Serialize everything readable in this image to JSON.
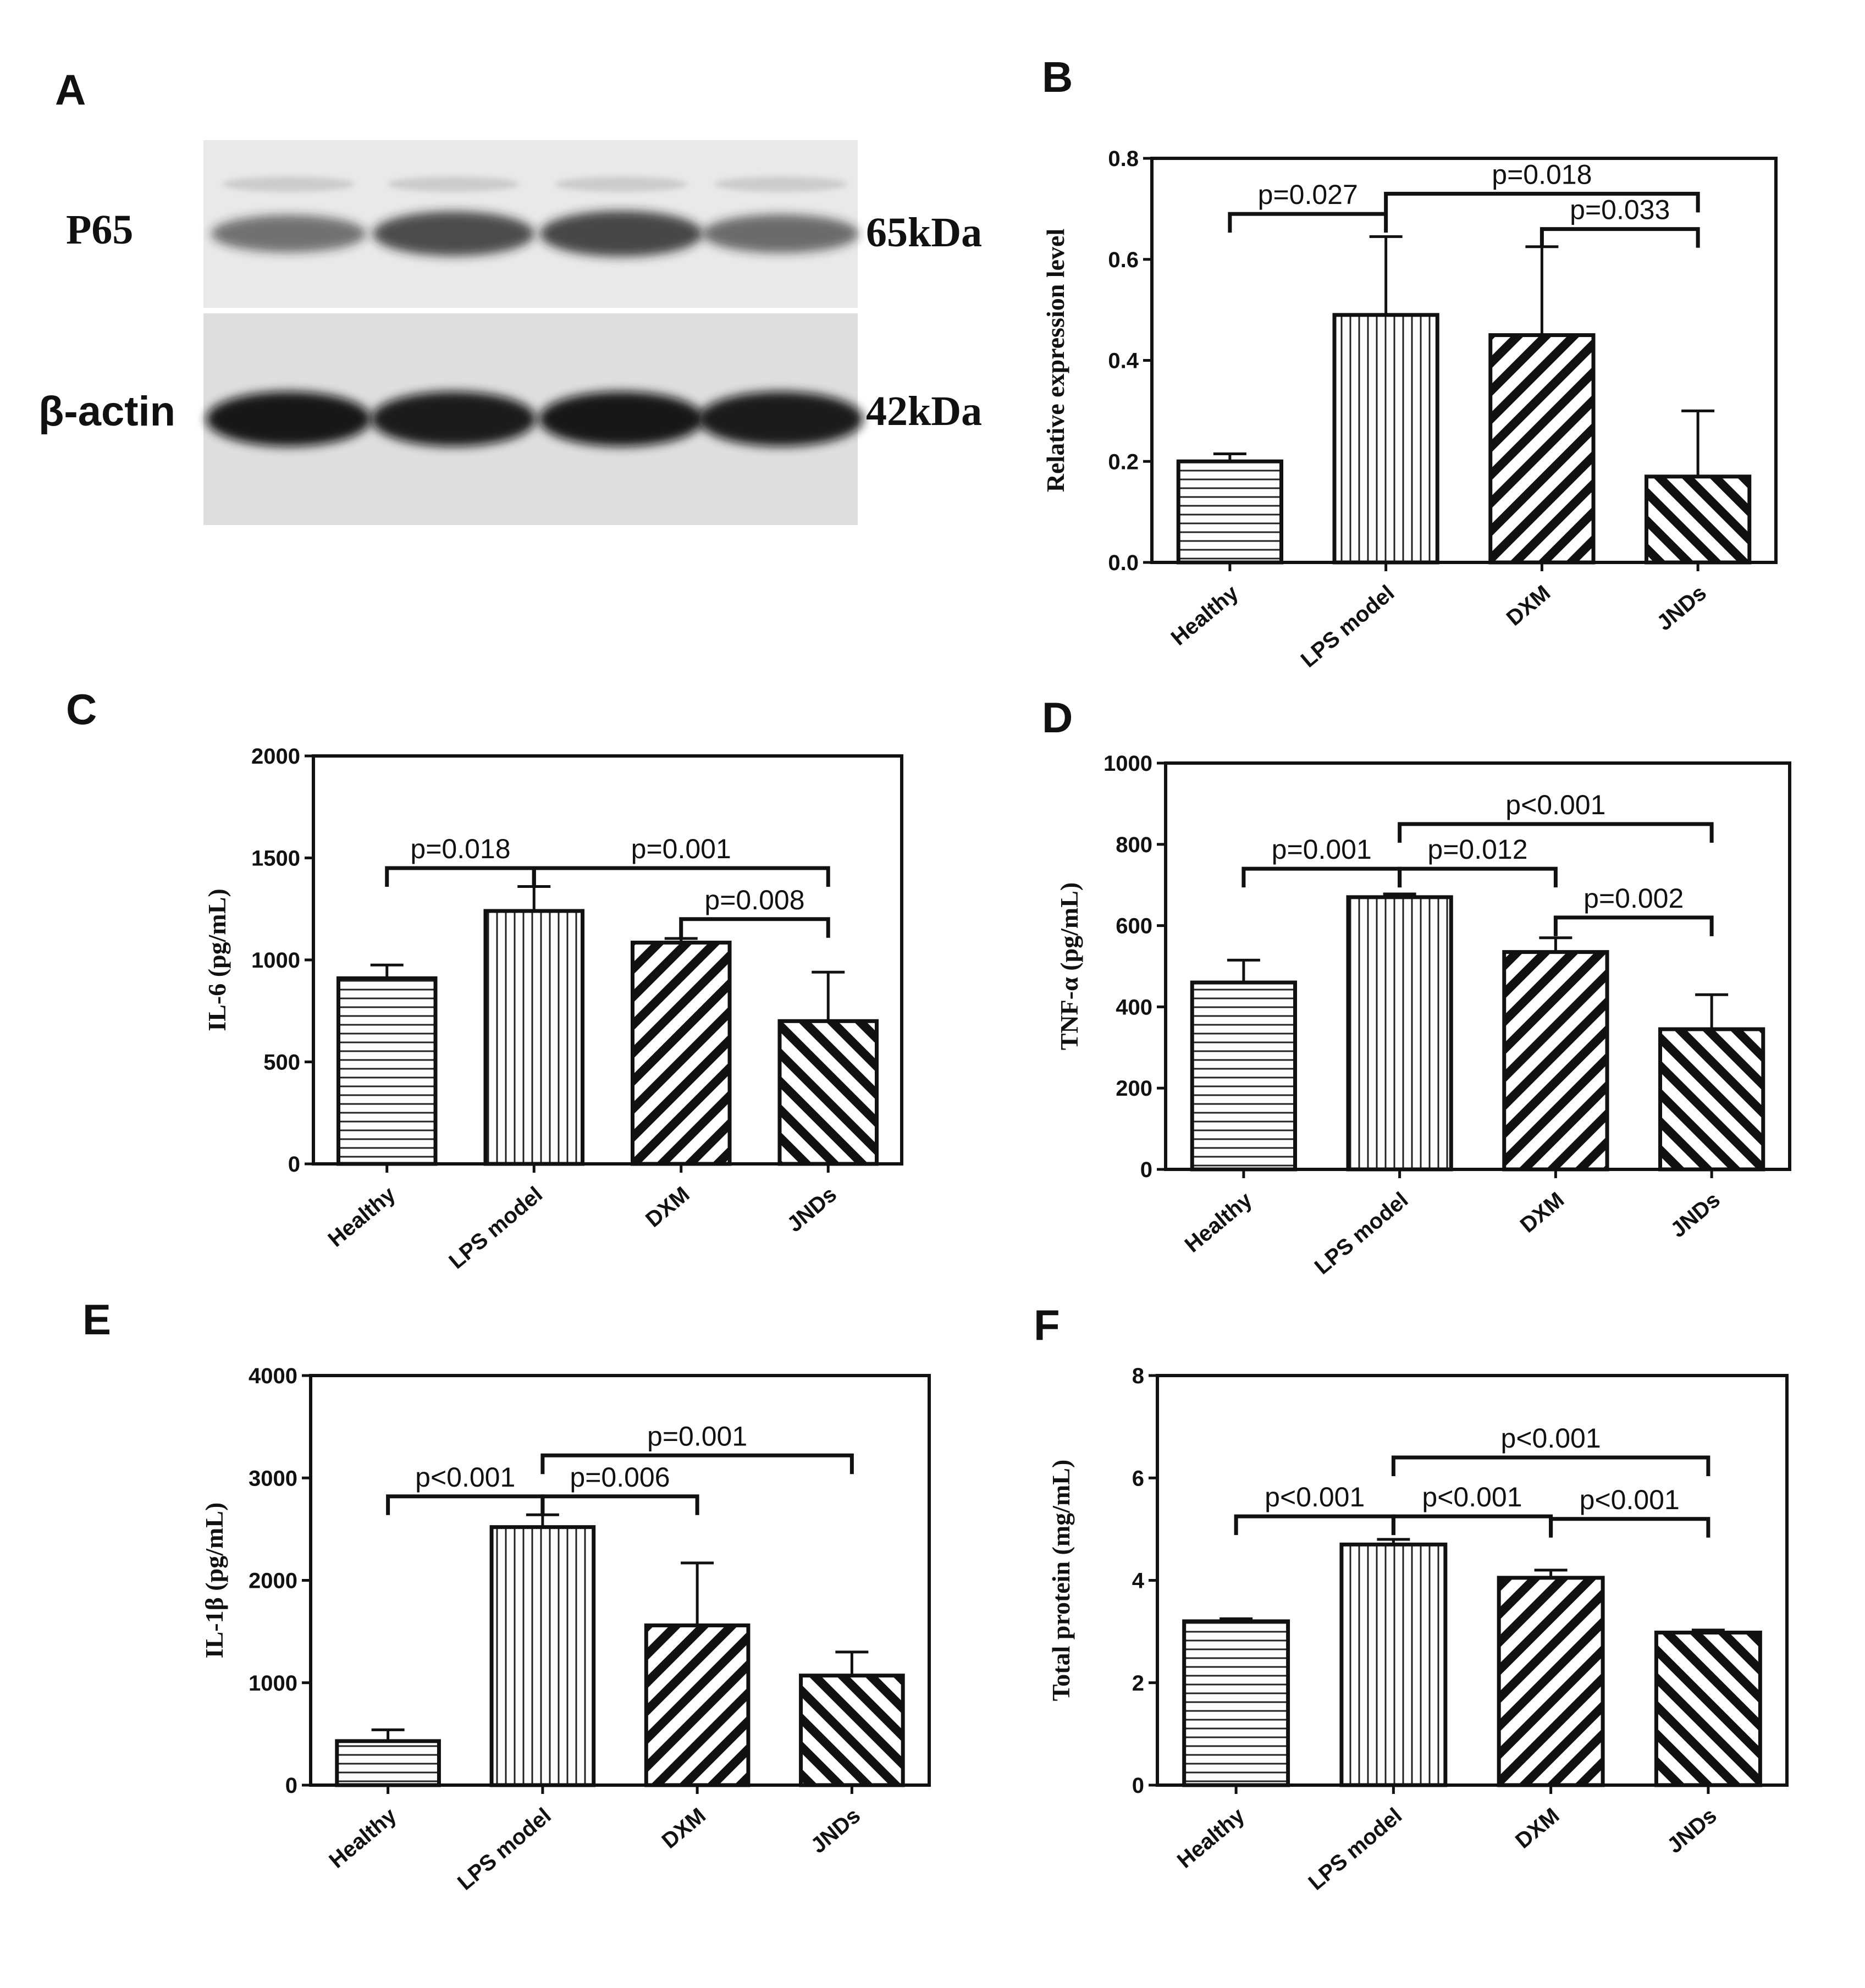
{
  "panel_labels": [
    "A",
    "B",
    "C",
    "D",
    "E",
    "F"
  ],
  "western_blot": {
    "rows": [
      {
        "protein": "P65",
        "mw": "65kDa",
        "intensity": [
          0.55,
          0.85,
          0.9,
          0.6
        ]
      },
      {
        "protein": "β-actin",
        "mw": "42kDa",
        "intensity": [
          1.0,
          0.95,
          1.0,
          0.95
        ]
      }
    ]
  },
  "chart_data": [
    {
      "panel": "B",
      "type": "bar",
      "categories": [
        "Healthy",
        "LPS model",
        "DXM",
        "JNDs"
      ],
      "values": [
        0.2,
        0.49,
        0.45,
        0.17
      ],
      "errors": [
        0.015,
        0.155,
        0.175,
        0.13
      ],
      "ylabel": "Relative expression level",
      "ylim": [
        0,
        0.8
      ],
      "yticks": [
        "0.0",
        "0.2",
        "0.4",
        "0.6",
        "0.8"
      ],
      "comparisons": [
        {
          "from": 0,
          "to": 1,
          "label": "p=0.027",
          "y": 0.69
        },
        {
          "from": 1,
          "to": 3,
          "label": "p=0.018",
          "y": 0.73
        },
        {
          "from": 2,
          "to": 3,
          "label": "p=0.033",
          "y": 0.66
        }
      ]
    },
    {
      "panel": "C",
      "type": "bar",
      "categories": [
        "Healthy",
        "LPS model",
        "DXM",
        "JNDs"
      ],
      "values": [
        910,
        1240,
        1085,
        700
      ],
      "errors": [
        65,
        120,
        20,
        240
      ],
      "ylabel": "IL-6 (pg/mL)",
      "ylim": [
        0,
        2000
      ],
      "yticks": [
        "0",
        "500",
        "1000",
        "1500",
        "2000"
      ],
      "comparisons": [
        {
          "from": 0,
          "to": 1,
          "label": "p=0.018",
          "y": 1450
        },
        {
          "from": 1,
          "to": 3,
          "label": "p=0.001",
          "y": 1450
        },
        {
          "from": 2,
          "to": 3,
          "label": "p=0.008",
          "y": 1200
        }
      ]
    },
    {
      "panel": "D",
      "type": "bar",
      "categories": [
        "Healthy",
        "LPS model",
        "DXM",
        "JNDs"
      ],
      "values": [
        460,
        670,
        535,
        345
      ],
      "errors": [
        55,
        8,
        35,
        85
      ],
      "ylabel": "TNF-α (pg/mL)",
      "ylim": [
        0,
        1000
      ],
      "yticks": [
        "0",
        "200",
        "400",
        "600",
        "800",
        "1000"
      ],
      "comparisons": [
        {
          "from": 0,
          "to": 1,
          "label": "p=0.001",
          "y": 740
        },
        {
          "from": 1,
          "to": 2,
          "label": "p=0.012",
          "y": 740
        },
        {
          "from": 1,
          "to": 3,
          "label": "p<0.001",
          "y": 850
        },
        {
          "from": 2,
          "to": 3,
          "label": "p=0.002",
          "y": 620
        }
      ]
    },
    {
      "panel": "E",
      "type": "bar",
      "categories": [
        "Healthy",
        "LPS model",
        "DXM",
        "JNDs"
      ],
      "values": [
        430,
        2520,
        1560,
        1070
      ],
      "errors": [
        110,
        120,
        610,
        230
      ],
      "ylabel": "IL-1β (pg/mL)",
      "ylim": [
        0,
        4000
      ],
      "yticks": [
        "0",
        "1000",
        "2000",
        "3000",
        "4000"
      ],
      "comparisons": [
        {
          "from": 0,
          "to": 1,
          "label": "p<0.001",
          "y": 2820
        },
        {
          "from": 1,
          "to": 2,
          "label": "p=0.006",
          "y": 2820
        },
        {
          "from": 1,
          "to": 3,
          "label": "p=0.001",
          "y": 3220
        }
      ]
    },
    {
      "panel": "F",
      "type": "bar",
      "categories": [
        "Healthy",
        "LPS model",
        "DXM",
        "JNDs"
      ],
      "values": [
        3.2,
        4.7,
        4.05,
        2.98
      ],
      "errors": [
        0.05,
        0.1,
        0.15,
        0.05
      ],
      "ylabel": "Total protein (mg/mL)",
      "ylim": [
        0,
        8
      ],
      "yticks": [
        "0",
        "2",
        "4",
        "6",
        "8"
      ],
      "comparisons": [
        {
          "from": 0,
          "to": 1,
          "label": "p<0.001",
          "y": 5.25
        },
        {
          "from": 1,
          "to": 2,
          "label": "p<0.001",
          "y": 5.25
        },
        {
          "from": 1,
          "to": 3,
          "label": "p<0.001",
          "y": 6.4
        },
        {
          "from": 2,
          "to": 3,
          "label": "p<0.001",
          "y": 5.2
        }
      ]
    }
  ]
}
